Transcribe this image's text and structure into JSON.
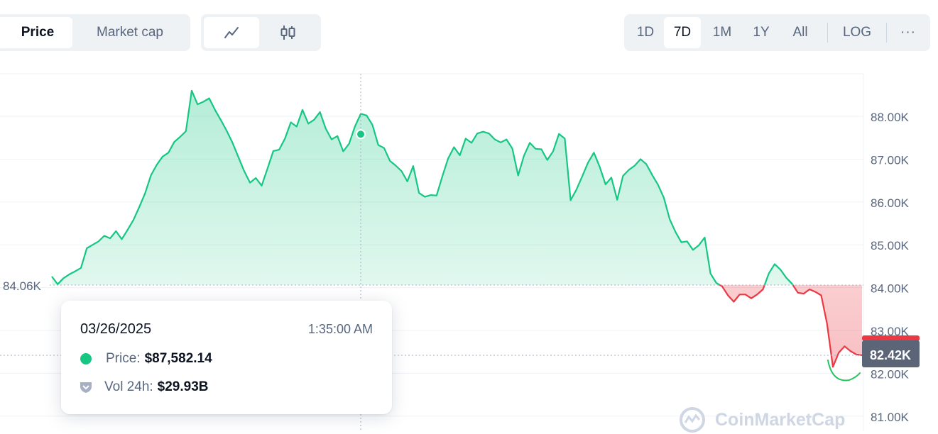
{
  "metric_tabs": [
    {
      "label": "Price",
      "active": true
    },
    {
      "label": "Market cap",
      "active": false
    }
  ],
  "chart_type_tabs": [
    {
      "icon": "line-chart-icon",
      "active": true
    },
    {
      "icon": "candlestick-icon",
      "active": false
    }
  ],
  "range_tabs": [
    {
      "label": "1D",
      "active": false
    },
    {
      "label": "7D",
      "active": true
    },
    {
      "label": "1M",
      "active": false
    },
    {
      "label": "1Y",
      "active": false
    },
    {
      "label": "All",
      "active": false
    }
  ],
  "scale_label": "LOG",
  "more_label": "···",
  "tooltip": {
    "date": "03/26/2025",
    "time": "1:35:00 AM",
    "price_label": "Price:",
    "price_value": "$87,582.14",
    "volume_label": "Vol 24h:",
    "volume_value": "$29.93B"
  },
  "watermark": "CoinMarketCap",
  "colors": {
    "up": "#16c784",
    "down": "#ea3943",
    "current_badge": "#5b6577",
    "text_muted": "#58667e"
  },
  "chart_data": {
    "type": "area",
    "series": [
      {
        "values": [
          84260,
          84080,
          84220,
          84310,
          84380,
          84460,
          84920,
          85000,
          85080,
          85210,
          85150,
          85320,
          85130,
          85350,
          85580,
          85880,
          86200,
          86620,
          86870,
          87060,
          87150,
          87400,
          87520,
          87650,
          88600,
          88280,
          88340,
          88420,
          88150,
          87910,
          87660,
          87380,
          87050,
          86720,
          86450,
          86560,
          86380,
          86780,
          87190,
          87220,
          87480,
          87860,
          87760,
          88150,
          87830,
          87920,
          88100,
          87710,
          87460,
          87540,
          87180,
          87360,
          87760,
          88060,
          88020,
          87800,
          87330,
          87260,
          86960,
          86850,
          86720,
          86480,
          86840,
          86210,
          86120,
          86160,
          86150,
          86600,
          87020,
          87280,
          87090,
          87480,
          87380,
          87600,
          87640,
          87600,
          87460,
          87390,
          87460,
          87250,
          86620,
          87080,
          87380,
          87240,
          87230,
          86980,
          87180,
          87590,
          87480,
          86040,
          86290,
          86600,
          86920,
          87150,
          86820,
          86410,
          86570,
          86050,
          86610,
          86750,
          86850,
          87000,
          86880,
          86630,
          86400,
          86100,
          85600,
          85300,
          85060,
          85080,
          84880,
          84990,
          85170,
          84330,
          84110,
          84030,
          83820,
          83670,
          83840,
          83840,
          83750,
          83840,
          83960,
          84330,
          84550,
          84420,
          84230,
          84090,
          83880,
          83860,
          83960,
          83900,
          83820,
          83160,
          82150,
          82480,
          82630,
          82520,
          82440,
          82420
        ]
      }
    ],
    "y_ticks": [
      "88.00K",
      "87.00K",
      "86.00K",
      "85.00K",
      "84.00K",
      "83.00K",
      "82.00K",
      "81.00K"
    ],
    "ylim": [
      80900,
      89000
    ],
    "reference_label": "84.06K",
    "reference_value": 84060,
    "current_label": "82.42K",
    "current_value": 82420,
    "hover_index": 53,
    "hover_value": 87582.14
  }
}
